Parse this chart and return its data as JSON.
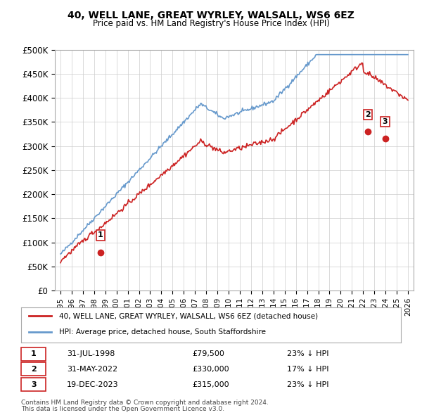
{
  "title": "40, WELL LANE, GREAT WYRLEY, WALSALL, WS6 6EZ",
  "subtitle": "Price paid vs. HM Land Registry's House Price Index (HPI)",
  "ylabel_ticks": [
    "£0",
    "£50K",
    "£100K",
    "£150K",
    "£200K",
    "£250K",
    "£300K",
    "£350K",
    "£400K",
    "£450K",
    "£500K"
  ],
  "ytick_values": [
    0,
    50000,
    100000,
    150000,
    200000,
    250000,
    300000,
    350000,
    400000,
    450000,
    500000
  ],
  "xlim": [
    1994.5,
    2026.5
  ],
  "ylim": [
    0,
    500000
  ],
  "hpi_color": "#6699cc",
  "price_color": "#cc2222",
  "legend1": "40, WELL LANE, GREAT WYRLEY, WALSALL, WS6 6EZ (detached house)",
  "legend2": "HPI: Average price, detached house, South Staffordshire",
  "transactions": [
    {
      "label": "1",
      "date": "31-JUL-1998",
      "price": 79500,
      "pct": "23%",
      "dir": "↓",
      "x": 1998.58
    },
    {
      "label": "2",
      "date": "31-MAY-2022",
      "price": 330000,
      "pct": "17%",
      "dir": "↓",
      "x": 2022.42
    },
    {
      "label": "3",
      "date": "19-DEC-2023",
      "price": 315000,
      "pct": "23%",
      "dir": "↓",
      "x": 2023.96
    }
  ],
  "footer1": "Contains HM Land Registry data © Crown copyright and database right 2024.",
  "footer2": "This data is licensed under the Open Government Licence v3.0.",
  "background_color": "#ffffff",
  "grid_color": "#cccccc"
}
